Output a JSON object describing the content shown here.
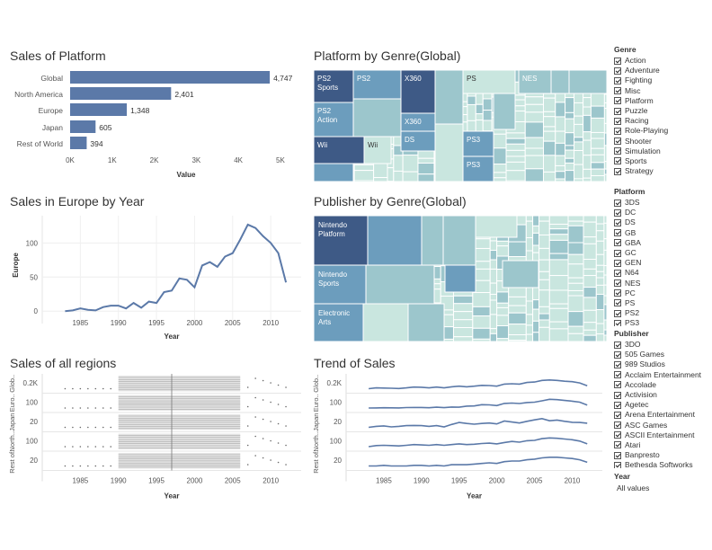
{
  "colors": {
    "bar": "#5b79a8",
    "line": "#5b79a8",
    "tm_dark": "#3e5a86",
    "tm_mid": "#6c9dbd",
    "tm_light": "#9cc6cc",
    "tm_pale": "#c9e6df"
  },
  "sales_platform": {
    "title": "Sales of Platform",
    "xlabel": "Value",
    "chart_data": {
      "type": "bar",
      "categories": [
        "Global",
        "North America",
        "Europe",
        "Japan",
        "Rest of World"
      ],
      "values": [
        4747,
        2401,
        1348,
        605,
        394
      ],
      "value_labels": [
        "4,747",
        "2,401",
        "1,348",
        "605",
        "394"
      ],
      "ticks": [
        0,
        1000,
        2000,
        3000,
        4000,
        5000
      ],
      "tick_labels": [
        "0K",
        "1K",
        "2K",
        "3K",
        "4K",
        "5K"
      ],
      "xlim": [
        0,
        5600
      ]
    }
  },
  "platform_genre": {
    "title": "Platform by Genre(Global)",
    "labels": [
      "PS2 Sports",
      "PS2",
      "X360",
      "PS",
      "NES",
      "PS2 Action",
      "X360",
      "Wii",
      "Wii",
      "DS",
      "PS3",
      "PS3"
    ]
  },
  "europe_year": {
    "title": "Sales in Europe by Year",
    "xlabel": "Year",
    "ylabel": "Europe",
    "chart_data": {
      "type": "line",
      "x": [
        1983,
        1984,
        1985,
        1986,
        1987,
        1988,
        1989,
        1990,
        1991,
        1992,
        1993,
        1994,
        1995,
        1996,
        1997,
        1998,
        1999,
        2000,
        2001,
        2002,
        2003,
        2004,
        2005,
        2006,
        2007,
        2008,
        2009,
        2010,
        2011,
        2012
      ],
      "y": [
        0,
        1,
        4,
        2,
        1,
        6,
        8,
        8,
        4,
        12,
        5,
        14,
        12,
        28,
        30,
        48,
        46,
        35,
        67,
        72,
        65,
        80,
        85,
        105,
        127,
        122,
        110,
        100,
        85,
        42
      ],
      "xticks": [
        1985,
        1990,
        1995,
        2000,
        2005,
        2010
      ],
      "yticks": [
        0,
        50,
        100
      ],
      "xlim": [
        1980,
        2014
      ],
      "ylim": [
        -5,
        140
      ]
    }
  },
  "publisher_genre": {
    "title": "Publisher by Genre(Global)",
    "labels": [
      "Nintendo Platform",
      "Nintendo Sports",
      "Electronic Arts"
    ]
  },
  "all_regions": {
    "title": "Sales of all regions",
    "xlabel": "Year",
    "row_labels": [
      "Glob..",
      "Euro..",
      "Japan",
      "North..",
      "Rest of.."
    ],
    "tick_labels": [
      "0.2K",
      "100",
      "20",
      "100",
      "20"
    ],
    "xticks": [
      1985,
      1990,
      1995,
      2000,
      2005,
      2010
    ]
  },
  "trend": {
    "title": "Trend of Sales",
    "xlabel": "Year",
    "row_labels": [
      "Glob..",
      "Euro..",
      "Japan",
      "North..",
      "Rest of.."
    ],
    "tick_labels": [
      "0.2K",
      "100",
      "20",
      "100",
      "20"
    ],
    "xticks": [
      1985,
      1990,
      1995,
      2000,
      2005,
      2010
    ],
    "chart_data": {
      "type": "line",
      "x": [
        1983,
        1984,
        1985,
        1986,
        1987,
        1988,
        1989,
        1990,
        1991,
        1992,
        1993,
        1994,
        1995,
        1996,
        1997,
        1998,
        1999,
        2000,
        2001,
        2002,
        2003,
        2004,
        2005,
        2006,
        2007,
        2008,
        2009,
        2010,
        2011,
        2012
      ],
      "series": [
        {
          "name": "Global",
          "values": [
            10,
            30,
            25,
            20,
            15,
            30,
            50,
            45,
            30,
            50,
            30,
            55,
            70,
            55,
            70,
            90,
            85,
            70,
            120,
            130,
            120,
            160,
            170,
            210,
            220,
            210,
            190,
            180,
            150,
            80
          ]
        },
        {
          "name": "Europe",
          "values": [
            0,
            1,
            4,
            2,
            1,
            6,
            8,
            8,
            4,
            12,
            5,
            14,
            12,
            28,
            30,
            48,
            46,
            35,
            67,
            72,
            65,
            80,
            85,
            105,
            127,
            122,
            110,
            100,
            85,
            42
          ]
        },
        {
          "name": "Japan",
          "values": [
            8,
            12,
            14,
            10,
            12,
            15,
            16,
            15,
            12,
            15,
            10,
            20,
            28,
            24,
            21,
            24,
            26,
            22,
            34,
            30,
            26,
            33,
            39,
            44,
            35,
            38,
            33,
            29,
            28,
            25
          ]
        },
        {
          "name": "North America",
          "values": [
            10,
            25,
            30,
            25,
            20,
            30,
            40,
            35,
            30,
            40,
            30,
            40,
            50,
            40,
            45,
            55,
            60,
            50,
            70,
            85,
            75,
            95,
            100,
            125,
            135,
            130,
            120,
            110,
            90,
            50
          ]
        },
        {
          "name": "Rest of World",
          "values": [
            2,
            2,
            3,
            2,
            2,
            2,
            3,
            3,
            2,
            3,
            2,
            4,
            4,
            4,
            5,
            6,
            7,
            6,
            9,
            10,
            10,
            12,
            13,
            15,
            16,
            16,
            15,
            14,
            12,
            8
          ]
        }
      ]
    }
  },
  "genre_filter": {
    "header": "Genre",
    "items": [
      "Action",
      "Adventure",
      "Fighting",
      "Misc",
      "Platform",
      "Puzzle",
      "Racing",
      "Role-Playing",
      "Shooter",
      "Simulation",
      "Sports",
      "Strategy"
    ]
  },
  "platform_filter": {
    "header": "Platform",
    "items": [
      "3DS",
      "DC",
      "DS",
      "GB",
      "GBA",
      "GC",
      "GEN",
      "N64",
      "NES",
      "PC",
      "PS",
      "PS2",
      "PS3"
    ]
  },
  "publisher_filter": {
    "header": "Publisher",
    "items": [
      "3DO",
      "505 Games",
      "989 Studios",
      "Acclaim Entertainment",
      "Accolade",
      "Activision",
      "Agetec",
      "Arena Entertainment",
      "ASC Games",
      "ASCII Entertainment",
      "Atari",
      "Banpresto",
      "Bethesda Softworks"
    ]
  },
  "year_filter": {
    "header": "Year",
    "value": "All values"
  }
}
